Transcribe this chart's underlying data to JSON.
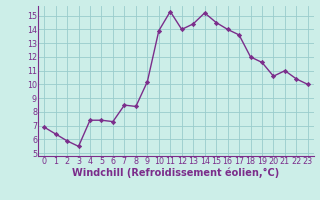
{
  "x": [
    0,
    1,
    2,
    3,
    4,
    5,
    6,
    7,
    8,
    9,
    10,
    11,
    12,
    13,
    14,
    15,
    16,
    17,
    18,
    19,
    20,
    21,
    22,
    23
  ],
  "y": [
    6.9,
    6.4,
    5.9,
    5.5,
    7.4,
    7.4,
    7.3,
    8.5,
    8.4,
    10.2,
    13.9,
    15.3,
    14.0,
    14.4,
    15.2,
    14.5,
    14.0,
    13.6,
    12.0,
    11.6,
    10.6,
    11.0,
    10.4,
    10.0
  ],
  "line_color": "#7b2d8b",
  "marker": "D",
  "marker_size": 2.2,
  "bg_color": "#cceee8",
  "grid_color": "#99cccc",
  "xlabel": "Windchill (Refroidissement éolien,°C)",
  "xlim_min": -0.5,
  "xlim_max": 23.5,
  "ylim_min": 4.8,
  "ylim_max": 15.7,
  "yticks": [
    5,
    6,
    7,
    8,
    9,
    10,
    11,
    12,
    13,
    14,
    15
  ],
  "xticks": [
    0,
    1,
    2,
    3,
    4,
    5,
    6,
    7,
    8,
    9,
    10,
    11,
    12,
    13,
    14,
    15,
    16,
    17,
    18,
    19,
    20,
    21,
    22,
    23
  ],
  "font_color": "#7b2d8b",
  "tick_fontsize": 5.8,
  "xlabel_fontsize": 7.0,
  "linewidth": 1.0
}
